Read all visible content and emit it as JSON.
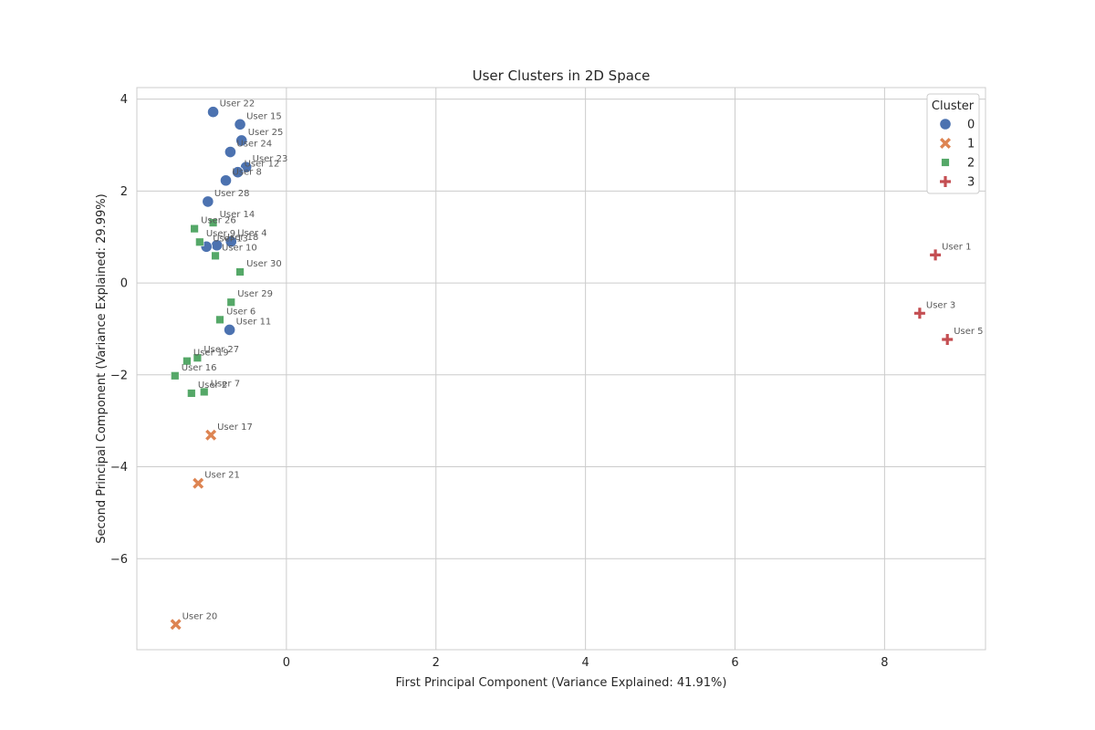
{
  "chart_data": {
    "type": "scatter",
    "title": "User Clusters in 2D Space",
    "xlabel": "First Principal Component (Variance Explained: 41.91%)",
    "ylabel": "Second Principal Component (Variance Explained: 29.99%)",
    "xlim": [
      -2.0,
      9.35
    ],
    "ylim": [
      -7.98,
      4.25
    ],
    "xticks": [
      0,
      2,
      4,
      6,
      8
    ],
    "yticks": [
      4,
      2,
      0,
      -2,
      -4,
      -6
    ],
    "xtick_labels": [
      "0",
      "2",
      "4",
      "6",
      "8"
    ],
    "ytick_labels": [
      "4",
      "2",
      "0",
      "−2",
      "−4",
      "−6"
    ],
    "grid": true,
    "legend": {
      "title": "Cluster",
      "placement": "top-right",
      "entries": [
        {
          "label": "0",
          "cluster": 0
        },
        {
          "label": "1",
          "cluster": 1
        },
        {
          "label": "2",
          "cluster": 2
        },
        {
          "label": "3",
          "cluster": 3
        }
      ]
    },
    "series": [
      {
        "cluster": 0,
        "marker": "circle",
        "color": "#4c72b0",
        "points": [
          {
            "label": "User 22",
            "x": -0.98,
            "y": 3.72
          },
          {
            "label": "User 15",
            "x": -0.62,
            "y": 3.45
          },
          {
            "label": "User 25",
            "x": -0.6,
            "y": 3.1
          },
          {
            "label": "User 24",
            "x": -0.75,
            "y": 2.85
          },
          {
            "label": "User 23",
            "x": -0.54,
            "y": 2.52
          },
          {
            "label": "User 12",
            "x": -0.65,
            "y": 2.41
          },
          {
            "label": "User 8",
            "x": -0.81,
            "y": 2.23
          },
          {
            "label": "User 28",
            "x": -1.05,
            "y": 1.77
          },
          {
            "label": "User 4",
            "x": -0.74,
            "y": 0.9
          },
          {
            "label": "User 18",
            "x": -0.93,
            "y": 0.82
          },
          {
            "label": "User 13",
            "x": -1.07,
            "y": 0.79
          },
          {
            "label": "User 11",
            "x": -0.76,
            "y": -1.02
          }
        ]
      },
      {
        "cluster": 1,
        "marker": "x",
        "color": "#dd8452",
        "points": [
          {
            "label": "User 17",
            "x": -1.01,
            "y": -3.31
          },
          {
            "label": "User 21",
            "x": -1.18,
            "y": -4.36
          },
          {
            "label": "User 20",
            "x": -1.48,
            "y": -7.43
          }
        ]
      },
      {
        "cluster": 2,
        "marker": "square",
        "color": "#55a868",
        "points": [
          {
            "label": "User 14",
            "x": -0.98,
            "y": 1.31
          },
          {
            "label": "User 26",
            "x": -1.23,
            "y": 1.18
          },
          {
            "label": "User 9",
            "x": -1.16,
            "y": 0.89
          },
          {
            "label": "User 10",
            "x": -0.95,
            "y": 0.59
          },
          {
            "label": "User 30",
            "x": -0.62,
            "y": 0.24
          },
          {
            "label": "User 29",
            "x": -0.74,
            "y": -0.42
          },
          {
            "label": "User 6",
            "x": -0.89,
            "y": -0.8
          },
          {
            "label": "User 27",
            "x": -1.19,
            "y": -1.63
          },
          {
            "label": "User 19",
            "x": -1.33,
            "y": -1.7
          },
          {
            "label": "User 16",
            "x": -1.49,
            "y": -2.02
          },
          {
            "label": "User 2",
            "x": -1.27,
            "y": -2.4
          },
          {
            "label": "User 7",
            "x": -1.1,
            "y": -2.37
          }
        ]
      },
      {
        "cluster": 3,
        "marker": "plus",
        "color": "#c44e52",
        "points": [
          {
            "label": "User 1",
            "x": 8.68,
            "y": 0.61
          },
          {
            "label": "User 3",
            "x": 8.47,
            "y": -0.66
          },
          {
            "label": "User 5",
            "x": 8.84,
            "y": -1.23
          }
        ]
      }
    ]
  }
}
